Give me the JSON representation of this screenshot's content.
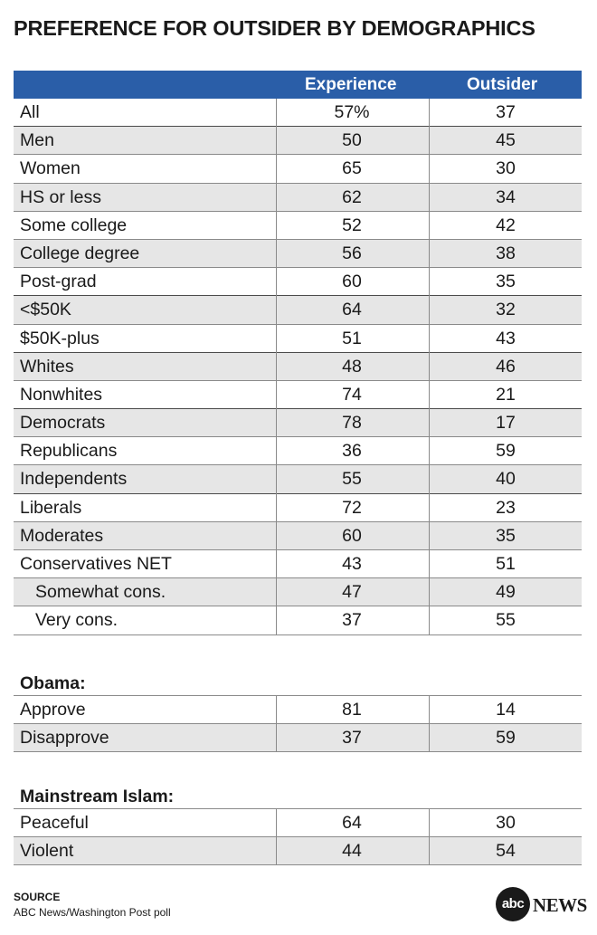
{
  "title": "PREFERENCE FOR OUTSIDER BY DEMOGRAPHICS",
  "chart_data": {
    "type": "table",
    "columns": [
      "Experience",
      "Outsider"
    ],
    "groups": [
      {
        "heading": "",
        "rows": [
          {
            "label": "All",
            "experience": "57%",
            "outsider": "37",
            "indent": false
          },
          {
            "label": "Men",
            "experience": "50",
            "outsider": "45",
            "indent": false
          },
          {
            "label": "Women",
            "experience": "65",
            "outsider": "30",
            "indent": false
          },
          {
            "label": "HS or less",
            "experience": "62",
            "outsider": "34",
            "indent": false
          },
          {
            "label": "Some college",
            "experience": "52",
            "outsider": "42",
            "indent": false
          },
          {
            "label": "College degree",
            "experience": "56",
            "outsider": "38",
            "indent": false
          },
          {
            "label": "Post-grad",
            "experience": "60",
            "outsider": "35",
            "indent": false
          },
          {
            "label": "<$50K",
            "experience": "64",
            "outsider": "32",
            "indent": false
          },
          {
            "label": "$50K-plus",
            "experience": "51",
            "outsider": "43",
            "indent": false
          },
          {
            "label": "Whites",
            "experience": "48",
            "outsider": "46",
            "indent": false
          },
          {
            "label": "Nonwhites",
            "experience": "74",
            "outsider": "21",
            "indent": false
          },
          {
            "label": "Democrats",
            "experience": "78",
            "outsider": "17",
            "indent": false
          },
          {
            "label": "Republicans",
            "experience": "36",
            "outsider": "59",
            "indent": false
          },
          {
            "label": "Independents",
            "experience": "55",
            "outsider": "40",
            "indent": false
          },
          {
            "label": "Liberals",
            "experience": "72",
            "outsider": "23",
            "indent": false
          },
          {
            "label": "Moderates",
            "experience": "60",
            "outsider": "35",
            "indent": false
          },
          {
            "label": "Conservatives NET",
            "experience": "43",
            "outsider": "51",
            "indent": false
          },
          {
            "label": "Somewhat cons.",
            "experience": "47",
            "outsider": "49",
            "indent": true
          },
          {
            "label": "Very cons.",
            "experience": "37",
            "outsider": "55",
            "indent": true
          }
        ]
      },
      {
        "heading": "Obama:",
        "rows": [
          {
            "label": "Approve",
            "experience": "81",
            "outsider": "14",
            "indent": false
          },
          {
            "label": "Disapprove",
            "experience": "37",
            "outsider": "59",
            "indent": false
          }
        ]
      },
      {
        "heading": "Mainstream Islam:",
        "rows": [
          {
            "label": "Peaceful",
            "experience": "64",
            "outsider": "30",
            "indent": false
          },
          {
            "label": "Violent",
            "experience": "44",
            "outsider": "54",
            "indent": false
          }
        ]
      }
    ]
  },
  "source_label": "SOURCE",
  "source_text": "ABC News/Washington Post poll",
  "logo": {
    "abc": "abc",
    "news": "NEWS"
  },
  "colors": {
    "header_bg": "#2a5ea8",
    "shade": "#e6e6e6",
    "rule": "#8a8a8a"
  }
}
